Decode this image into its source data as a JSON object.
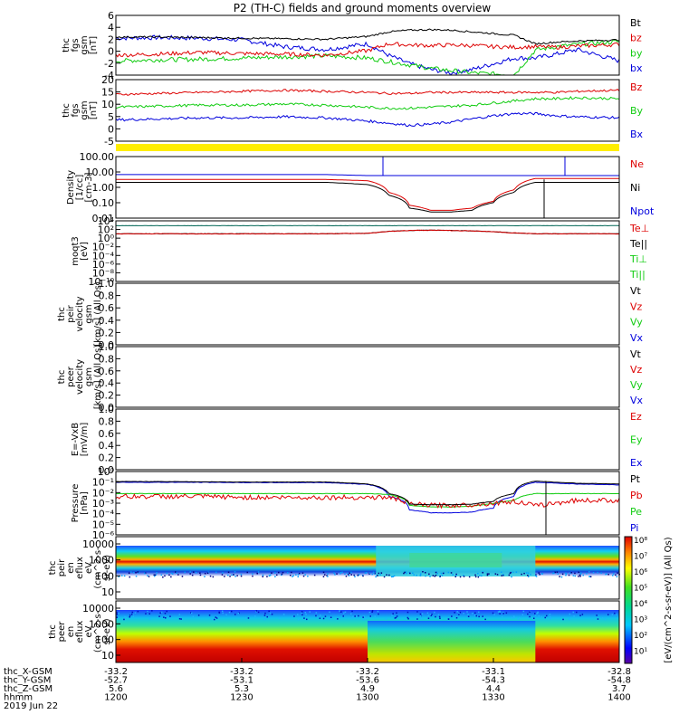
{
  "title": "P2 (TH-C) fields and ground moments overview",
  "colors": {
    "black": "#000000",
    "red": "#dd0000",
    "green": "#11cc11",
    "blue": "#0000dd",
    "yellow": "#ffee00",
    "teal": "#006655"
  },
  "panels": [
    {
      "id": "fgs",
      "ylabels": [
        "thc",
        "fgs",
        "gsm",
        "[nT]"
      ],
      "ticks": [
        "6",
        "4",
        "2",
        "0",
        "-2",
        "-4"
      ],
      "ylim": [
        -4,
        6.5
      ],
      "legend": [
        {
          "text": "Bt",
          "color": "#000000"
        },
        {
          "text": "bz",
          "color": "#dd0000"
        },
        {
          "text": "by",
          "color": "#11cc11"
        },
        {
          "text": "bx",
          "color": "#0000dd"
        }
      ]
    },
    {
      "id": "fgs2",
      "ylabels": [
        "thc",
        "fgs",
        "gsm",
        "[nT]"
      ],
      "ticks": [
        "20",
        "15",
        "10",
        "5",
        "0",
        "-5"
      ],
      "ylim": [
        -8,
        21
      ],
      "legend": [
        {
          "text": "Bz",
          "color": "#dd0000"
        },
        {
          "text": "By",
          "color": "#11cc11"
        },
        {
          "text": "Bx",
          "color": "#0000dd"
        }
      ]
    },
    {
      "id": "density",
      "ylabels": [
        "Density",
        "[1/cc]",
        "[cm-3]"
      ],
      "ticks": [
        "100.00",
        "10.00",
        "1.00",
        "0.10",
        "0.01"
      ],
      "ylim": [
        0.005,
        300
      ],
      "legend": [
        {
          "text": "Ne",
          "color": "#dd0000"
        },
        {
          "text": "Ni",
          "color": "#000000"
        },
        {
          "text": "Npot",
          "color": "#0000dd"
        }
      ]
    },
    {
      "id": "temp",
      "ylabels": [
        "moqt3",
        "[eV]"
      ],
      "ticks": [
        "10⁴",
        "10²",
        "10⁰",
        "10⁻²",
        "10⁻⁴",
        "10⁻⁶",
        "10⁻⁸",
        "10⁻¹⁰"
      ],
      "ylim": [
        -10.5,
        4.5
      ],
      "legend": [
        {
          "text": "Te⊥",
          "color": "#dd0000"
        },
        {
          "text": "Te||",
          "color": "#000000"
        },
        {
          "text": "Ti⊥",
          "color": "#11cc11"
        },
        {
          "text": "Ti||",
          "color": "#11cc11"
        }
      ]
    },
    {
      "id": "peir_vel",
      "ylabels": [
        "thc",
        "peir",
        "velocity",
        "gsm",
        "[km/s] (All Qs)"
      ],
      "ticks": [
        "1.0",
        "0.8",
        "0.6",
        "0.4",
        "0.2",
        "0.0"
      ],
      "ylim": [
        0,
        1
      ],
      "legend": [
        {
          "text": "Vt",
          "color": "#000000"
        },
        {
          "text": "Vz",
          "color": "#dd0000"
        },
        {
          "text": "Vy",
          "color": "#11cc11"
        },
        {
          "text": "Vx",
          "color": "#0000dd"
        }
      ]
    },
    {
      "id": "peer_vel",
      "ylabels": [
        "thc",
        "peer",
        "velocity",
        "gsm",
        "[km/s] (All Qs)"
      ],
      "ticks": [
        "1.0",
        "0.8",
        "0.6",
        "0.4",
        "0.2",
        "0.0"
      ],
      "ylim": [
        0,
        1
      ],
      "legend": [
        {
          "text": "Vt",
          "color": "#000000"
        },
        {
          "text": "Vz",
          "color": "#dd0000"
        },
        {
          "text": "Vy",
          "color": "#11cc11"
        },
        {
          "text": "Vx",
          "color": "#0000dd"
        }
      ]
    },
    {
      "id": "efield",
      "ylabels": [
        "E=-VxB",
        "[mV/m]"
      ],
      "ticks": [
        "1.0",
        "0.8",
        "0.6",
        "0.4",
        "0.2",
        "0.0"
      ],
      "ylim": [
        0,
        1
      ],
      "legend": [
        {
          "text": "Ez",
          "color": "#dd0000"
        },
        {
          "text": "Ey",
          "color": "#11cc11"
        },
        {
          "text": "Ex",
          "color": "#0000dd"
        }
      ]
    },
    {
      "id": "pressure",
      "ylabels": [
        "Pressure",
        "[nPa]"
      ],
      "ticks": [
        "10⁰",
        "10⁻¹",
        "10⁻²",
        "10⁻³",
        "10⁻⁴",
        "10⁻⁵",
        "10⁻⁶"
      ],
      "ylim": [
        -6.3,
        0.3
      ],
      "legend": [
        {
          "text": "Pt",
          "color": "#000000"
        },
        {
          "text": "Pb",
          "color": "#dd0000"
        },
        {
          "text": "Pe",
          "color": "#11cc11"
        },
        {
          "text": "Pi",
          "color": "#0000dd"
        }
      ]
    },
    {
      "id": "peir_en",
      "ylabels": [
        "thc",
        "peir",
        "en",
        "eflux",
        "eV",
        "(cm^2-s-",
        "sr-eV)"
      ],
      "ticks": [
        "10000",
        "1000",
        "100",
        "10"
      ],
      "ylim": [
        0.7,
        4.2
      ],
      "legend": []
    },
    {
      "id": "peer_en",
      "ylabels": [
        "thc",
        "peer",
        "en",
        "eflux",
        "eV",
        "(cm^2-s-",
        "sr-eV)"
      ],
      "ticks": [
        "10000",
        "1000",
        "100",
        "10"
      ],
      "ylim": [
        0.7,
        4.2
      ],
      "legend": []
    }
  ],
  "colorbar": {
    "ticks": [
      "10⁸",
      "10⁷",
      "10⁶",
      "10⁵",
      "10⁴",
      "10³",
      "10²",
      "10¹"
    ],
    "label": "[eV/(cm^2-s-sr-eV)] (All Qs)"
  },
  "footer": {
    "row_labels": [
      "thc_X-GSM",
      "thc_Y-GSM",
      "thc_Z-GSM",
      "hhmm",
      "2019 Jun 22"
    ],
    "columns": [
      [
        "-33.2",
        "-52.7",
        "5.6",
        "1200"
      ],
      [
        "-33.2",
        "-53.1",
        "5.3",
        "1230"
      ],
      [
        "-33.2",
        "-53.6",
        "4.9",
        "1300"
      ],
      [
        "-33.1",
        "-54.3",
        "4.4",
        "1330"
      ],
      [
        "-32.8",
        "-54.8",
        "3.7",
        "1400"
      ]
    ]
  },
  "chart_data": {
    "type": "line",
    "title": "P2 (TH-C) fields and ground moments overview",
    "x_label": "hhmm",
    "x_ticks": [
      "1200",
      "1230",
      "1300",
      "1330",
      "1400"
    ],
    "x_range_minutes": [
      0,
      120
    ],
    "x_minutes": [
      0,
      10,
      20,
      30,
      40,
      50,
      60,
      65,
      70,
      75,
      80,
      85,
      90,
      95,
      100,
      105,
      110,
      120
    ],
    "panel_1_fgs_nT": {
      "Bt": [
        2.7,
        2.7,
        2.6,
        2.5,
        2.4,
        2.3,
        2.8,
        3.6,
        3.9,
        4.0,
        3.9,
        3.6,
        3.3,
        3.0,
        1.5,
        1.8,
        2.0,
        2.2
      ],
      "bz": [
        -0.5,
        -0.3,
        0.0,
        -0.2,
        -0.3,
        -0.5,
        0.3,
        1.5,
        1.3,
        1.2,
        1.3,
        1.2,
        1.0,
        0.9,
        1.0,
        0.9,
        1.1,
        1.4
      ],
      "by": [
        -1.5,
        -1.3,
        -1.2,
        -1.0,
        -0.8,
        -0.6,
        -1.0,
        -1.6,
        -2.2,
        -2.8,
        -3.2,
        -3.6,
        -3.8,
        -3.9,
        0.4,
        1.0,
        1.4,
        1.9
      ],
      "bx": [
        2.5,
        2.6,
        2.5,
        2.2,
        1.0,
        0.5,
        1.5,
        -0.5,
        -2.0,
        -3.0,
        -3.6,
        -3.0,
        -2.0,
        -1.0,
        -1.0,
        -0.3,
        0.5,
        -1.5
      ]
    },
    "panel_2_fgs_nT": {
      "Bz": [
        14,
        14.5,
        15,
        15.5,
        16,
        15.5,
        15,
        14.5,
        14.5,
        15,
        15,
        15,
        15,
        15,
        15,
        15,
        15.5,
        16
      ],
      "By": [
        8,
        8.5,
        9,
        9,
        9.5,
        9,
        8,
        7.5,
        7.5,
        8,
        8.5,
        9,
        10,
        11,
        12,
        12,
        12.5,
        12
      ],
      "Bx": [
        2,
        2.5,
        3,
        3,
        3.5,
        3,
        1.5,
        0.5,
        -0.5,
        0,
        1,
        2.5,
        4,
        5,
        5,
        4,
        3.5,
        3
      ]
    },
    "panel_3_density_cm-3": {
      "Ne": [
        5,
        5,
        5,
        5,
        5,
        5,
        4,
        0.5,
        0.05,
        0.02,
        0.02,
        0.03,
        0.1,
        0.8,
        6,
        6,
        6,
        6
      ],
      "Ni": [
        3,
        3,
        3,
        3,
        3,
        3,
        2,
        0.3,
        0.03,
        0.015,
        0.015,
        0.02,
        0.08,
        0.5,
        3,
        3,
        3,
        3
      ],
      "Npot": [
        12,
        12,
        12,
        12,
        12,
        12,
        10,
        10,
        10,
        10,
        10,
        10,
        10,
        10,
        10,
        10,
        10,
        10
      ]
    },
    "panel_8_pressure_nPa": {
      "Pt": [
        0.18,
        0.18,
        0.17,
        0.16,
        0.16,
        0.16,
        0.1,
        0.01,
        0.0008,
        0.0007,
        0.0007,
        0.0008,
        0.0015,
        0.01,
        0.2,
        0.15,
        0.12,
        0.1
      ],
      "Pb": [
        0.005,
        0.005,
        0.005,
        0.004,
        0.004,
        0.004,
        0.004,
        0.004,
        0.0008,
        0.0006,
        0.0006,
        0.0007,
        0.001,
        0.0015,
        0.0005,
        0.001,
        0.002,
        0.002
      ],
      "Pe": [
        0.01,
        0.01,
        0.01,
        0.01,
        0.01,
        0.01,
        0.01,
        0.008,
        0.0006,
        0.0004,
        0.0004,
        0.0005,
        0.0009,
        0.002,
        0.01,
        0.01,
        0.01,
        0.01
      ],
      "Pi": [
        0.15,
        0.15,
        0.15,
        0.14,
        0.14,
        0.14,
        0.09,
        0.005,
        0.0002,
        0.0001,
        0.0001,
        0.00012,
        0.0003,
        0.005,
        0.15,
        0.12,
        0.1,
        0.08
      ]
    }
  }
}
